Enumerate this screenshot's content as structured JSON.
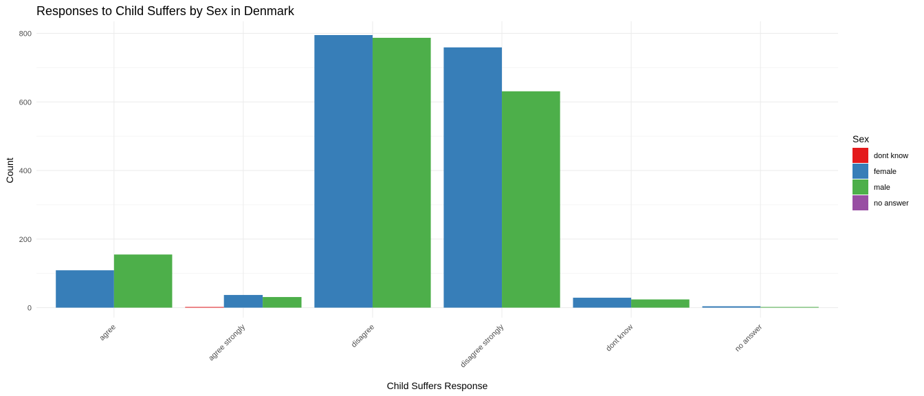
{
  "chart_data": {
    "type": "bar",
    "title": "Responses to Child Suffers by Sex in Denmark",
    "xlabel": "Child Suffers Response",
    "ylabel": "Count",
    "ylim": [
      0,
      830
    ],
    "yticks": [
      0,
      200,
      400,
      600,
      800
    ],
    "grid": true,
    "legend": {
      "title": "Sex",
      "position": "right"
    },
    "categories": [
      "agree",
      "agree strongly",
      "disagree",
      "disagree strongly",
      "dont know",
      "no answer"
    ],
    "series": [
      {
        "name": "dont know",
        "color": "#e41a1c",
        "values": [
          0,
          2,
          0,
          0,
          0,
          0
        ]
      },
      {
        "name": "female",
        "color": "#377eb8",
        "values": [
          109,
          37,
          795,
          759,
          29,
          4
        ]
      },
      {
        "name": "male",
        "color": "#4daf4a",
        "values": [
          155,
          31,
          787,
          631,
          24,
          2
        ]
      },
      {
        "name": "no answer",
        "color": "#984ea3",
        "values": [
          0,
          0,
          0,
          0,
          0,
          0
        ]
      }
    ]
  }
}
